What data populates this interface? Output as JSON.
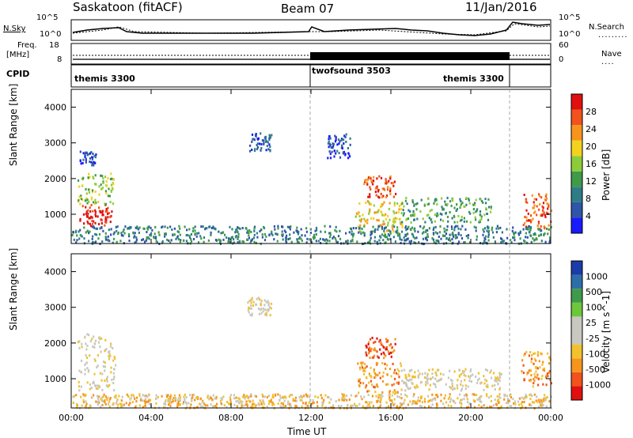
{
  "header": {
    "station": "Saskatoon (fitACF)",
    "beam": "Beam 07",
    "date": "11/Jan/2016"
  },
  "top_labels": {
    "nsky": "N.Sky",
    "freq_line1": "Freq.",
    "freq_line2": "[MHz]",
    "cpid": "CPID",
    "nsearch": "N.Search",
    "nave": "Nave",
    "nsky_ticks": [
      "10^5",
      "10^0"
    ],
    "freq_ticks": [
      "18",
      "8"
    ],
    "nsearch_ticks": [
      "10^5",
      "10^0"
    ],
    "nave_ticks": [
      "60",
      "0"
    ]
  },
  "cpid_segments": [
    {
      "label": "themis 3300",
      "start_hour": 0,
      "end_hour": 12
    },
    {
      "label": "twofsound 3503",
      "start_hour": 12,
      "end_hour": 22
    },
    {
      "label": "themis 3300",
      "start_hour": 12,
      "end_hour": 22
    }
  ],
  "panels": {
    "power": {
      "ylabel": "Slant Range [km]",
      "cbar_label": "Power [dB]"
    },
    "velocity": {
      "ylabel": "Slant Range [km]",
      "cbar_label": "Velocity [m s^-1]"
    }
  },
  "xlabel": "Time UT",
  "colors": {
    "power_scale": [
      "#1a1aff",
      "#2e55a8",
      "#2e7d86",
      "#3f9a4a",
      "#8ccc3a",
      "#f2d21e",
      "#f7941d",
      "#f2521e",
      "#e01010"
    ],
    "velocity_scale": [
      "#e01010",
      "#f2521e",
      "#f7941d",
      "#f2c12e",
      "#c8c8c0",
      "#c8c8c0",
      "#6cc83a",
      "#3f9a4a",
      "#2e6ea8",
      "#1a3ca8"
    ],
    "frame": "#000000"
  },
  "chart_data": {
    "type": "heatmap",
    "x_axis": {
      "label": "Time UT",
      "ticks": [
        "00:00",
        "04:00",
        "08:00",
        "12:00",
        "16:00",
        "20:00",
        "00:00"
      ],
      "range_hours": [
        0,
        24
      ]
    },
    "y_axis": {
      "label": "Slant Range [km]",
      "ticks": [
        "1000",
        "2000",
        "3000",
        "4000"
      ],
      "range_km": [
        180,
        4500
      ]
    },
    "power_colorbar": {
      "label": "Power [dB]",
      "ticks": [
        "4",
        "8",
        "12",
        "16",
        "20",
        "24",
        "28"
      ],
      "range": [
        0,
        30
      ]
    },
    "velocity_colorbar": {
      "label": "Velocity [m s^-1]",
      "ticks": [
        "-1000",
        "-500",
        "-100",
        "-25",
        "25",
        "100",
        "500",
        "1000"
      ]
    },
    "power_blobs": [
      {
        "t0": 0.4,
        "t1": 2.0,
        "r0": 700,
        "r1": 1300,
        "level": 8
      },
      {
        "t0": 0.3,
        "t1": 2.1,
        "r0": 1300,
        "r1": 2200,
        "level": 4
      },
      {
        "t0": 0.4,
        "t1": 1.2,
        "r0": 2400,
        "r1": 2800,
        "level": 1
      },
      {
        "t0": 8.9,
        "t1": 10.0,
        "r0": 2800,
        "r1": 3300,
        "level": 1
      },
      {
        "t0": 12.8,
        "t1": 14.0,
        "r0": 2600,
        "r1": 3300,
        "level": 1
      },
      {
        "t0": 14.2,
        "t1": 16.6,
        "r0": 500,
        "r1": 1400,
        "level": 5
      },
      {
        "t0": 14.6,
        "t1": 16.2,
        "r0": 1500,
        "r1": 2100,
        "level": 7
      },
      {
        "t0": 16.5,
        "t1": 21.0,
        "r0": 800,
        "r1": 1500,
        "level": 3
      },
      {
        "t0": 22.6,
        "t1": 24.0,
        "r0": 600,
        "r1": 1600,
        "level": 7
      },
      {
        "t0": 0.0,
        "t1": 24.0,
        "r0": 200,
        "r1": 700,
        "level": 2
      }
    ],
    "velocity_blobs": [
      {
        "t0": 0.3,
        "t1": 2.2,
        "r0": 700,
        "r1": 2300,
        "level": 4
      },
      {
        "t0": 14.3,
        "t1": 16.5,
        "r0": 600,
        "r1": 1500,
        "level": 2
      },
      {
        "t0": 14.7,
        "t1": 16.2,
        "r0": 1600,
        "r1": 2200,
        "level": 1
      },
      {
        "t0": 16.5,
        "t1": 21.5,
        "r0": 700,
        "r1": 1300,
        "level": 4
      },
      {
        "t0": 22.5,
        "t1": 24.0,
        "r0": 800,
        "r1": 1800,
        "level": 2
      },
      {
        "t0": 0.0,
        "t1": 24.0,
        "r0": 200,
        "r1": 600,
        "level": 3
      },
      {
        "t0": 8.8,
        "t1": 10.0,
        "r0": 2800,
        "r1": 3300,
        "level": 4
      }
    ]
  }
}
